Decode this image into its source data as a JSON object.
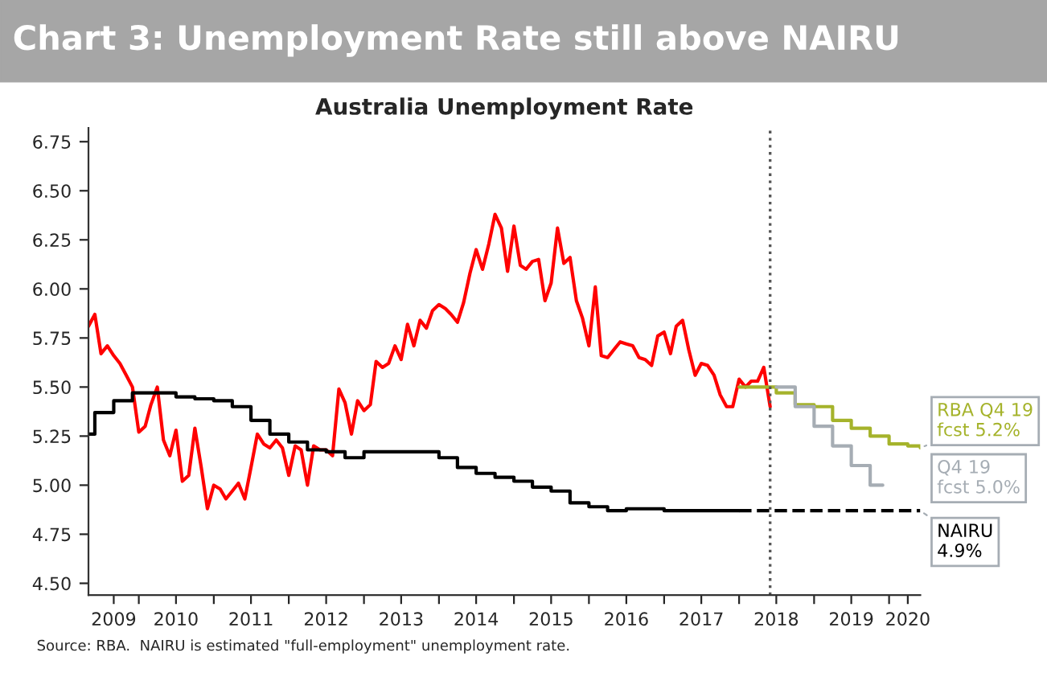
{
  "chart_data": {
    "type": "line",
    "title": "Chart 3: Unemployment Rate still above NAIRU",
    "subtitle": "Australia Unemployment Rate",
    "series": [
      {
        "color": "#ff0000",
        "x": [
          "2009-05",
          "2009-06",
          "2009-07",
          "2009-08",
          "2009-09",
          "2009-10",
          "2009-11",
          "2009-12",
          "2010-01",
          "2010-02",
          "2010-03",
          "2010-04",
          "2010-05",
          "2010-06",
          "2010-07",
          "2010-08",
          "2010-09",
          "2010-10",
          "2010-11",
          "2010-12",
          "2011-01",
          "2011-02",
          "2011-03",
          "2011-04",
          "2011-05",
          "2011-06",
          "2011-07",
          "2011-08",
          "2011-09",
          "2011-10",
          "2011-11",
          "2011-12",
          "2012-01",
          "2012-02",
          "2012-03",
          "2012-04",
          "2012-05",
          "2012-06",
          "2012-07",
          "2012-08",
          "2012-09",
          "2012-10",
          "2012-11",
          "2012-12",
          "2013-01",
          "2013-02",
          "2013-03",
          "2013-04",
          "2013-05",
          "2013-06",
          "2013-07",
          "2013-08",
          "2013-09",
          "2013-10",
          "2013-11",
          "2013-12",
          "2014-01",
          "2014-02",
          "2014-03",
          "2014-04",
          "2014-05",
          "2014-06",
          "2014-07",
          "2014-08",
          "2014-09",
          "2014-10",
          "2014-11",
          "2014-12",
          "2015-01",
          "2015-02",
          "2015-03",
          "2015-04",
          "2015-05",
          "2015-06",
          "2015-07",
          "2015-08",
          "2015-09",
          "2015-10",
          "2015-11",
          "2015-12",
          "2016-01",
          "2016-02",
          "2016-03",
          "2016-04",
          "2016-05",
          "2016-06",
          "2016-07",
          "2016-08",
          "2016-09",
          "2016-10",
          "2016-11",
          "2016-12",
          "2017-01",
          "2017-02",
          "2017-03",
          "2017-04",
          "2017-05",
          "2017-06",
          "2017-07",
          "2017-08",
          "2017-09",
          "2017-10",
          "2017-11",
          "2017-12",
          "2018-01",
          "2018-02",
          "2018-03",
          "2018-04",
          "2018-05",
          "2018-06"
        ],
        "values": [
          5.81,
          5.87,
          5.67,
          5.71,
          5.66,
          5.62,
          5.56,
          5.5,
          5.27,
          5.3,
          5.41,
          5.5,
          5.23,
          5.15,
          5.28,
          5.02,
          5.05,
          5.29,
          5.09,
          4.88,
          5.0,
          4.98,
          4.93,
          4.97,
          5.01,
          4.93,
          5.09,
          5.26,
          5.21,
          5.19,
          5.23,
          5.19,
          5.05,
          5.2,
          5.18,
          5.0,
          5.2,
          5.18,
          5.18,
          5.15,
          5.49,
          5.42,
          5.26,
          5.43,
          5.38,
          5.41,
          5.63,
          5.6,
          5.62,
          5.71,
          5.64,
          5.82,
          5.71,
          5.84,
          5.8,
          5.89,
          5.92,
          5.9,
          5.87,
          5.83,
          5.93,
          6.08,
          6.2,
          6.1,
          6.23,
          6.38,
          6.31,
          6.09,
          6.32,
          6.12,
          6.1,
          6.14,
          6.15,
          5.94,
          6.03,
          6.31,
          6.13,
          6.16,
          5.94,
          5.85,
          5.71,
          6.01,
          5.66,
          5.65,
          5.69,
          5.73,
          5.72,
          5.71,
          5.65,
          5.64,
          5.61,
          5.76,
          5.78,
          5.67,
          5.81,
          5.84,
          5.69,
          5.56,
          5.62,
          5.61,
          5.56,
          5.46,
          5.4,
          5.4,
          5.54,
          5.5,
          5.53,
          5.53,
          5.6,
          5.4
        ]
      },
      {
        "type": "step",
        "color": "#000000",
        "x": [
          "2009-05",
          "2009-06",
          "2009-09",
          "2009-12",
          "2010-07",
          "2010-10",
          "2011-01",
          "2011-04",
          "2011-07",
          "2011-10",
          "2012-01",
          "2012-04",
          "2012-07",
          "2012-10",
          "2013-01",
          "2014-01",
          "2014-04",
          "2014-07",
          "2014-10",
          "2015-01",
          "2015-04",
          "2015-07",
          "2015-10",
          "2016-01",
          "2016-04",
          "2016-07",
          "2017-01",
          "2018-01"
        ],
        "values": [
          5.26,
          5.37,
          5.43,
          5.47,
          5.45,
          5.44,
          5.43,
          5.4,
          5.33,
          5.26,
          5.22,
          5.18,
          5.17,
          5.14,
          5.17,
          5.14,
          5.09,
          5.06,
          5.04,
          5.02,
          4.99,
          4.97,
          4.91,
          4.89,
          4.87,
          4.88,
          4.87,
          4.87
        ]
      },
      {
        "type": "line",
        "color": "#000000",
        "line_style": "dashed",
        "x": [
          "2018-01",
          "2020-06"
        ],
        "values": [
          4.87,
          4.87
        ]
      },
      {
        "type": "step",
        "color": "#a5b32b",
        "x": [
          "2018-01",
          "2018-07",
          "2018-10",
          "2019-01",
          "2019-04",
          "2019-07",
          "2019-10",
          "2020-01",
          "2020-04",
          "2020-06"
        ],
        "values": [
          5.5,
          5.47,
          5.41,
          5.4,
          5.33,
          5.29,
          5.25,
          5.21,
          5.2,
          5.19
        ]
      },
      {
        "type": "step",
        "color": "#a6adb4",
        "x": [
          "2018-07",
          "2018-10",
          "2019-01",
          "2019-04",
          "2019-07",
          "2019-10",
          "2019-12"
        ],
        "values": [
          5.5,
          5.4,
          5.3,
          5.2,
          5.1,
          5.0,
          5.0
        ]
      }
    ],
    "xlim": [
      "2009-05",
      "2020-06"
    ],
    "xticks": [
      {
        "value": "2009-09",
        "label": "2009"
      },
      {
        "value": "2010",
        "label": null
      },
      {
        "value": "2010-07",
        "label": "2010"
      },
      {
        "value": "2011",
        "label": null
      },
      {
        "value": "2011-07",
        "label": "2011"
      },
      {
        "value": "2012",
        "label": null
      },
      {
        "value": "2012-07",
        "label": "2012"
      },
      {
        "value": "2013",
        "label": null
      },
      {
        "value": "2013-07",
        "label": "2013"
      },
      {
        "value": "2014",
        "label": null
      },
      {
        "value": "2014-07",
        "label": "2014"
      },
      {
        "value": "2015",
        "label": null
      },
      {
        "value": "2015-07",
        "label": "2015"
      },
      {
        "value": "2016",
        "label": null
      },
      {
        "value": "2016-07",
        "label": "2016"
      },
      {
        "value": "2017",
        "label": null
      },
      {
        "value": "2017-07",
        "label": "2017"
      },
      {
        "value": "2018",
        "label": null
      },
      {
        "value": "2018-07",
        "label": "2018"
      },
      {
        "value": "2019",
        "label": null
      },
      {
        "value": "2019-07",
        "label": "2019"
      },
      {
        "value": "2020",
        "label": null
      },
      {
        "value": "2020-04",
        "label": "2020"
      }
    ],
    "ylim": [
      4.44,
      6.82
    ],
    "yticks": [
      {
        "value": 4.5,
        "label": "4.50"
      },
      {
        "value": 4.75,
        "label": "4.75"
      },
      {
        "value": 5.0,
        "label": "5.00"
      },
      {
        "value": 5.25,
        "label": "5.25"
      },
      {
        "value": 5.5,
        "label": "5.50"
      },
      {
        "value": 5.75,
        "label": "5.75"
      },
      {
        "value": 6.0,
        "label": "6.00"
      },
      {
        "value": 6.25,
        "label": "6.25"
      },
      {
        "value": 6.5,
        "label": "6.50"
      },
      {
        "value": 6.75,
        "label": "6.75"
      }
    ],
    "ref_lines": [
      {
        "axis": "x",
        "value": "2018-06",
        "color": "#555555",
        "line_style": "dotted"
      }
    ],
    "annotations": [
      {
        "text": "RBA Q4 19\nfcst 5.2%",
        "x": "2020-06",
        "y": 5.19
      },
      "Q4 19\nfcst 5.0%",
      {
        "text": "NAIRU\n4.9%",
        "x": "2020-06",
        "y": 4.87
      },
      "Source: RBA.  NAIRU is estimated \"full-employment\" unemployment rate."
    ],
    "grid": false,
    "legend": false,
    "marker": "none"
  }
}
